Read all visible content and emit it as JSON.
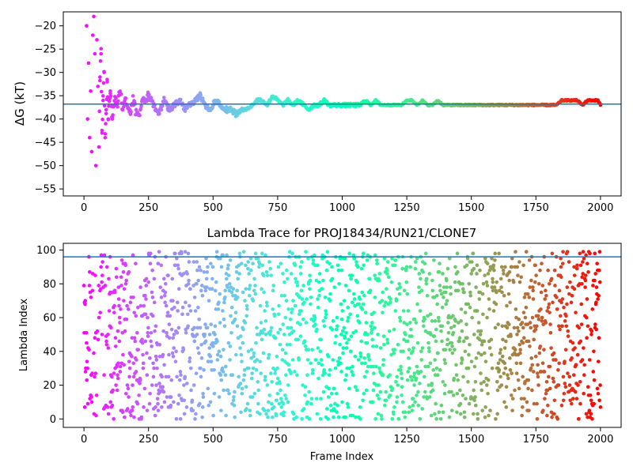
{
  "chart_data": [
    {
      "type": "scatter",
      "title": "",
      "xlabel": "",
      "ylabel": "ΔG (kT)",
      "xlim": [
        -80,
        2080
      ],
      "ylim": [
        -56.5,
        -17
      ],
      "x_ticks": [
        0,
        250,
        500,
        750,
        1000,
        1250,
        1500,
        1750,
        2000
      ],
      "y_ticks": [
        -55,
        -50,
        -45,
        -40,
        -35,
        -30,
        -25,
        -20
      ],
      "x_tick_labels": [
        "0",
        "250",
        "500",
        "750",
        "1000",
        "1250",
        "1500",
        "1750",
        "2000"
      ],
      "y_tick_labels": [
        "−55",
        "−50",
        "−45",
        "−40",
        "−35",
        "−30",
        "−25",
        "−20"
      ],
      "colormap": "rainbow (color by frame index)",
      "hline": {
        "y": -36.8,
        "color": "#1f77b4"
      },
      "grid": false,
      "frames": 2001,
      "series": [
        {
          "points_x": [
            10,
            14,
            18,
            22,
            26,
            30,
            34,
            38,
            42,
            46,
            50,
            54,
            58,
            62,
            66,
            70,
            74,
            78,
            82,
            86,
            90,
            94,
            98,
            102,
            110,
            120,
            130,
            140,
            150,
            160,
            175,
            190,
            210,
            230,
            250,
            270,
            290,
            310,
            330,
            350,
            370,
            390,
            410,
            430,
            450,
            470,
            490,
            510,
            530,
            550,
            570,
            590,
            610,
            630,
            650,
            670,
            690,
            710,
            730,
            750,
            770,
            790,
            810,
            830,
            850,
            870,
            890,
            910,
            930,
            950,
            970,
            990,
            1010,
            1030,
            1050,
            1070,
            1090,
            1110,
            1130,
            1150,
            1170,
            1190,
            1210,
            1230,
            1250,
            1270,
            1290,
            1310,
            1330,
            1350,
            1370,
            1390,
            1410,
            1430,
            1450,
            1470,
            1490,
            1510,
            1530,
            1550,
            1570,
            1590,
            1610,
            1630,
            1650,
            1670,
            1690,
            1710,
            1730,
            1750,
            1770,
            1790,
            1810,
            1830,
            1850,
            1870,
            1890,
            1910,
            1930,
            1950,
            1970,
            1990,
            2000
          ],
          "points_y": [
            -20,
            -40,
            -28,
            -44,
            -34,
            -47,
            -22,
            -18,
            -26,
            -50,
            -23,
            -33,
            -46,
            -31,
            -26,
            -43,
            -36,
            -30,
            -44,
            -38,
            -32,
            -40,
            -36,
            -34,
            -40,
            -35,
            -37,
            -33,
            -38,
            -35,
            -39,
            -36,
            -40,
            -36,
            -35,
            -37,
            -39,
            -36,
            -38,
            -37,
            -36,
            -38,
            -37,
            -36,
            -35,
            -37,
            -38,
            -36,
            -37,
            -38,
            -38,
            -39,
            -38,
            -38,
            -37,
            -36,
            -36,
            -37,
            -35,
            -36,
            -37,
            -36,
            -37,
            -36,
            -37,
            -38,
            -37,
            -37,
            -36,
            -37,
            -37,
            -37,
            -37,
            -37,
            -37,
            -37,
            -36,
            -37,
            -36,
            -37,
            -37,
            -37,
            -37,
            -37,
            -36,
            -36,
            -37,
            -36,
            -37,
            -37,
            -36,
            -37,
            -37,
            -37,
            -37,
            -37,
            -37,
            -37,
            -37,
            -37,
            -37,
            -37,
            -37,
            -37,
            -37,
            -37,
            -37,
            -37,
            -37,
            -37,
            -37,
            -37,
            -37,
            -37,
            -36,
            -36,
            -36,
            -36,
            -37,
            -36,
            -36,
            -36,
            -37
          ]
        }
      ]
    },
    {
      "type": "scatter",
      "title": "Lambda Trace for PROJ18434/RUN21/CLONE7",
      "xlabel": "Frame Index",
      "ylabel": "Lambda Index",
      "xlim": [
        -80,
        2080
      ],
      "ylim": [
        -5,
        104
      ],
      "x_ticks": [
        0,
        250,
        500,
        750,
        1000,
        1250,
        1500,
        1750,
        2000
      ],
      "y_ticks": [
        0,
        20,
        40,
        60,
        80,
        100
      ],
      "x_tick_labels": [
        "0",
        "250",
        "500",
        "750",
        "1000",
        "1250",
        "1500",
        "1750",
        "2000"
      ],
      "y_tick_labels": [
        "0",
        "20",
        "40",
        "60",
        "80",
        "100"
      ],
      "colormap": "rainbow (color by frame index)",
      "hline": {
        "y": 96,
        "color": "#1f77b4"
      },
      "grid": false,
      "frames": 2001,
      "lambda_range": [
        0,
        99
      ]
    }
  ]
}
